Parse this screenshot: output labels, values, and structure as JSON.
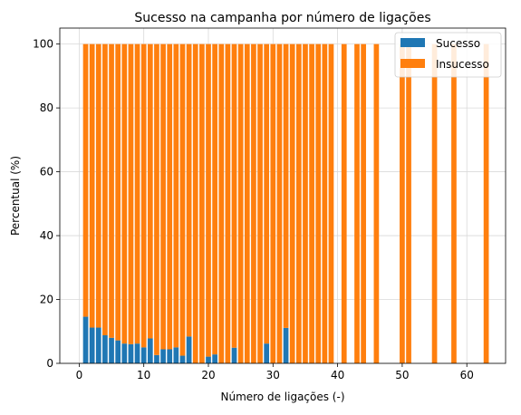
{
  "chart_data": {
    "type": "bar",
    "stacked": true,
    "title": "Sucesso na campanha por número de ligações",
    "xlabel": "Número de ligações (-)",
    "ylabel": "Percentual (%)",
    "xlim": [
      -3,
      66
    ],
    "ylim": [
      0,
      105
    ],
    "xticks": [
      0,
      10,
      20,
      30,
      40,
      50,
      60
    ],
    "yticks": [
      0,
      20,
      40,
      60,
      80,
      100
    ],
    "grid": true,
    "legend_position": "top-right",
    "x": [
      1,
      2,
      3,
      4,
      5,
      6,
      7,
      8,
      9,
      10,
      11,
      12,
      13,
      14,
      15,
      16,
      17,
      18,
      19,
      20,
      21,
      22,
      23,
      24,
      25,
      26,
      27,
      28,
      29,
      30,
      31,
      32,
      33,
      34,
      35,
      36,
      37,
      38,
      39,
      41,
      43,
      44,
      46,
      50,
      51,
      55,
      58,
      63
    ],
    "series": [
      {
        "name": "Sucesso",
        "color": "#1f77b4",
        "values": [
          14.6,
          11.2,
          11.2,
          8.8,
          8.0,
          7.2,
          6.2,
          6.0,
          6.2,
          5.0,
          7.8,
          2.6,
          4.4,
          4.4,
          5.0,
          2.4,
          8.4,
          0,
          0,
          2.1,
          2.8,
          0,
          0,
          4.9,
          0,
          0,
          0,
          0,
          6.2,
          0,
          0,
          11.1,
          0,
          0,
          0,
          0,
          0,
          0,
          0,
          0,
          0,
          0,
          0,
          0,
          0,
          0,
          0,
          0
        ]
      },
      {
        "name": "Insucesso",
        "color": "#ff7f0e",
        "values": [
          85.4,
          88.8,
          88.8,
          91.2,
          92.0,
          92.8,
          93.8,
          94.0,
          93.8,
          95.0,
          92.2,
          97.4,
          95.6,
          95.6,
          95.0,
          97.6,
          91.6,
          100,
          100,
          97.9,
          97.2,
          100,
          100,
          95.1,
          100,
          100,
          100,
          100,
          93.8,
          100,
          100,
          88.9,
          100,
          100,
          100,
          100,
          100,
          100,
          100,
          100,
          100,
          100,
          100,
          100,
          100,
          100,
          100,
          100
        ]
      }
    ]
  }
}
